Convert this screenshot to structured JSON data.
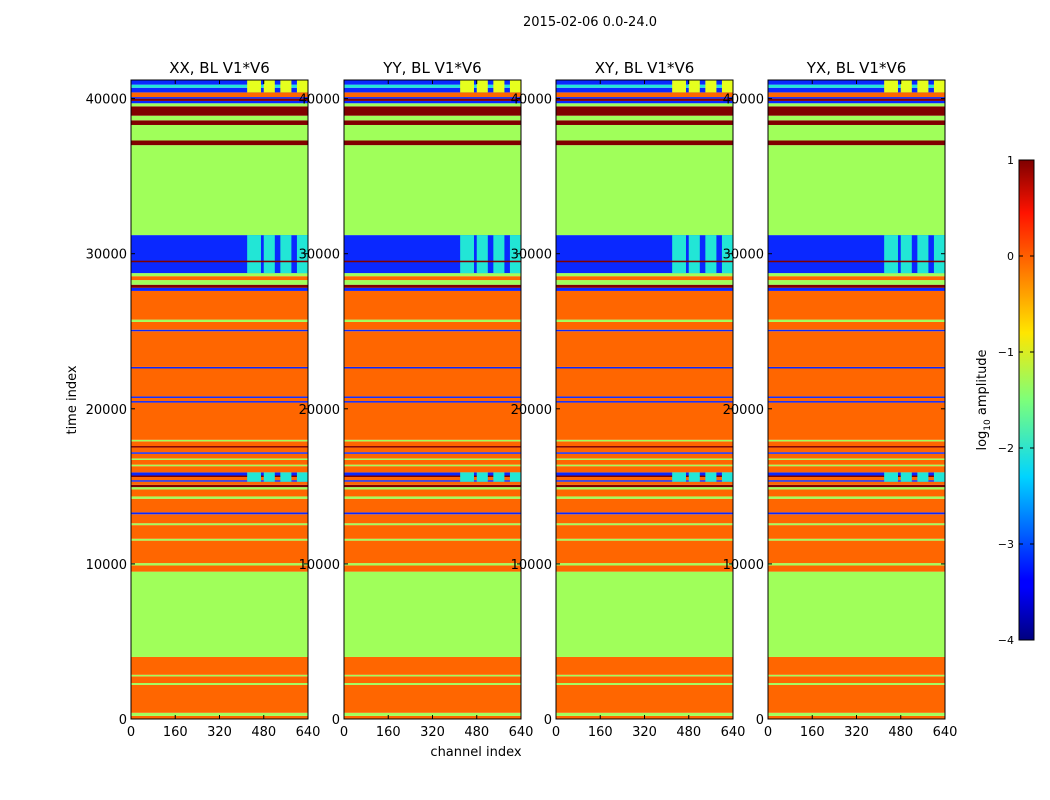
{
  "chart_data": {
    "type": "heatmap",
    "suptitle": "2015-02-06 0.0-24.0",
    "xlabel": "channel index",
    "ylabel": "time index",
    "xlim": [
      0,
      640
    ],
    "ylim": [
      0,
      41200
    ],
    "xticks": [
      0,
      160,
      320,
      480,
      640
    ],
    "yticks": [
      0,
      10000,
      20000,
      30000,
      40000
    ],
    "colorbar": {
      "label_prefix": "log",
      "label_base": "10",
      "label_suffix": " amplitude",
      "range": [
        -4,
        1
      ],
      "ticks": [
        1,
        0,
        -1,
        -2,
        -3,
        -4
      ],
      "tick_labels": [
        "1",
        "0",
        "−1",
        "−2",
        "−3",
        "−4"
      ],
      "colormap": "jet"
    },
    "panels": [
      {
        "title": "XX, BL V1*V6"
      },
      {
        "title": "YY, BL V1*V6"
      },
      {
        "title": "XY, BL V1*V6"
      },
      {
        "title": "YX, BL V1*V6"
      }
    ],
    "colors": {
      "orange": "#ff6600",
      "green": "#a0ff5a",
      "darkred": "#800000",
      "blue": "#0a28ff",
      "cyan": "#22e6d6",
      "yellow": "#e6ff1e"
    },
    "bands": [
      {
        "y": [
          0,
          200
        ],
        "color": "orange"
      },
      {
        "y": [
          200,
          400
        ],
        "color": "green"
      },
      {
        "y": [
          400,
          2200
        ],
        "color": "orange"
      },
      {
        "y": [
          2200,
          2320
        ],
        "color": "green"
      },
      {
        "y": [
          2320,
          2750
        ],
        "color": "orange"
      },
      {
        "y": [
          2750,
          2850
        ],
        "color": "green"
      },
      {
        "y": [
          2850,
          4000
        ],
        "color": "orange"
      },
      {
        "y": [
          4000,
          9500
        ],
        "color": "green"
      },
      {
        "y": [
          9500,
          9900
        ],
        "color": "orange"
      },
      {
        "y": [
          9900,
          10050
        ],
        "color": "green"
      },
      {
        "y": [
          10050,
          11500
        ],
        "color": "orange"
      },
      {
        "y": [
          11500,
          11620
        ],
        "color": "green"
      },
      {
        "y": [
          11620,
          12500
        ],
        "color": "orange"
      },
      {
        "y": [
          12500,
          12620
        ],
        "color": "green"
      },
      {
        "y": [
          12620,
          13200
        ],
        "color": "orange"
      },
      {
        "y": [
          13200,
          13320
        ],
        "color": "blue"
      },
      {
        "y": [
          13320,
          14200
        ],
        "color": "orange"
      },
      {
        "y": [
          14200,
          14350
        ],
        "color": "green"
      },
      {
        "y": [
          14350,
          14800
        ],
        "color": "orange"
      },
      {
        "y": [
          14800,
          14950
        ],
        "color": "green"
      },
      {
        "y": [
          14950,
          15100
        ],
        "color": "darkred"
      },
      {
        "y": [
          15100,
          15300
        ],
        "color": "orange"
      },
      {
        "y": [
          15300,
          15400
        ],
        "color": "blue"
      },
      {
        "y": [
          15400,
          15600
        ],
        "color": "orange"
      },
      {
        "y": [
          15600,
          15700
        ],
        "color": "darkred"
      },
      {
        "y": [
          15700,
          15900
        ],
        "color": "blue"
      },
      {
        "y": [
          15900,
          16300
        ],
        "color": "orange"
      },
      {
        "y": [
          16300,
          16400
        ],
        "color": "green"
      },
      {
        "y": [
          16400,
          16700
        ],
        "color": "orange"
      },
      {
        "y": [
          16700,
          16800
        ],
        "color": "green"
      },
      {
        "y": [
          16800,
          17100
        ],
        "color": "orange"
      },
      {
        "y": [
          17100,
          17200
        ],
        "color": "blue"
      },
      {
        "y": [
          17200,
          17500
        ],
        "color": "orange"
      },
      {
        "y": [
          17500,
          17600
        ],
        "color": "darkred"
      },
      {
        "y": [
          17600,
          17900
        ],
        "color": "orange"
      },
      {
        "y": [
          17900,
          18000
        ],
        "color": "green"
      },
      {
        "y": [
          18000,
          20400
        ],
        "color": "orange"
      },
      {
        "y": [
          20400,
          20500
        ],
        "color": "blue"
      },
      {
        "y": [
          20500,
          20700
        ],
        "color": "orange"
      },
      {
        "y": [
          20700,
          20800
        ],
        "color": "blue"
      },
      {
        "y": [
          20800,
          22600
        ],
        "color": "orange"
      },
      {
        "y": [
          22600,
          22700
        ],
        "color": "blue"
      },
      {
        "y": [
          22700,
          25000
        ],
        "color": "orange"
      },
      {
        "y": [
          25000,
          25100
        ],
        "color": "blue"
      },
      {
        "y": [
          25100,
          25600
        ],
        "color": "orange"
      },
      {
        "y": [
          25600,
          25750
        ],
        "color": "green"
      },
      {
        "y": [
          25750,
          27600
        ],
        "color": "orange"
      },
      {
        "y": [
          27600,
          27800
        ],
        "color": "blue"
      },
      {
        "y": [
          27800,
          28000
        ],
        "color": "darkred"
      },
      {
        "y": [
          28000,
          28300
        ],
        "color": "green"
      },
      {
        "y": [
          28300,
          28550
        ],
        "color": "orange"
      },
      {
        "y": [
          28550,
          28750
        ],
        "color": "green"
      },
      {
        "y": [
          28750,
          31200
        ],
        "color": "blue"
      },
      {
        "y": [
          31200,
          37000
        ],
        "color": "green"
      },
      {
        "y": [
          37000,
          37300
        ],
        "color": "darkred"
      },
      {
        "y": [
          37300,
          38300
        ],
        "color": "green"
      },
      {
        "y": [
          38300,
          38600
        ],
        "color": "darkred"
      },
      {
        "y": [
          38600,
          38900
        ],
        "color": "green"
      },
      {
        "y": [
          38900,
          39500
        ],
        "color": "darkred"
      },
      {
        "y": [
          39500,
          39700
        ],
        "color": "green"
      },
      {
        "y": [
          39700,
          39850
        ],
        "color": "blue"
      },
      {
        "y": [
          39850,
          40000
        ],
        "color": "darkred"
      },
      {
        "y": [
          40000,
          40100
        ],
        "color": "blue"
      },
      {
        "y": [
          40100,
          40400
        ],
        "color": "orange"
      },
      {
        "y": [
          40400,
          40700
        ],
        "color": "blue"
      },
      {
        "y": [
          40700,
          40900
        ],
        "color": "cyan"
      },
      {
        "y": [
          40900,
          41200
        ],
        "color": "blue"
      }
    ],
    "rfi_region": {
      "x_ranges": [
        [
          420,
          470
        ],
        [
          480,
          520
        ],
        [
          540,
          580
        ],
        [
          600,
          640
        ]
      ],
      "y_bands": [
        {
          "y": [
            28750,
            31200
          ],
          "color": "cyan"
        },
        {
          "y": [
            40400,
            41200
          ],
          "color": "yellow"
        },
        {
          "y": [
            15300,
            15900
          ],
          "color": "cyan"
        }
      ]
    },
    "dark_line": {
      "y": [
        29450,
        29550
      ],
      "color": "darkred"
    }
  }
}
